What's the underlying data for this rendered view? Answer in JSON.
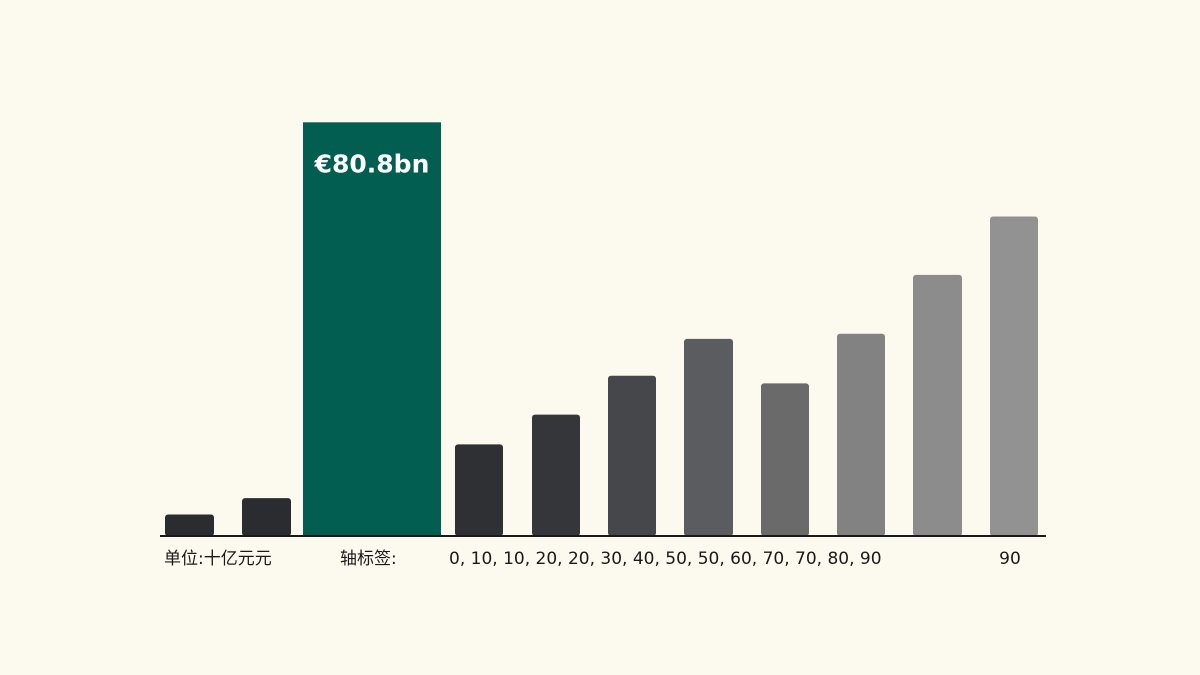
{
  "chart_data": {
    "type": "bar",
    "title": "",
    "xlabel": "",
    "ylabel": "",
    "ylim": [
      0,
      90
    ],
    "grid": false,
    "legend": "none",
    "bars": [
      {
        "value": 4.2,
        "color": "#2a2c30"
      },
      {
        "value": 7.4,
        "color": "#2a2c30"
      },
      {
        "value": 80.8,
        "color": "#025e50",
        "label": "€80.8bn",
        "highlight": true
      },
      {
        "value": 17.9,
        "color": "#2e3034"
      },
      {
        "value": 23.7,
        "color": "#34363a"
      },
      {
        "value": 31.3,
        "color": "#46474b"
      },
      {
        "value": 38.5,
        "color": "#5b5c5f"
      },
      {
        "value": 29.8,
        "color": "#6a6a6b"
      },
      {
        "value": 39.5,
        "color": "#828282"
      },
      {
        "value": 51.0,
        "color": "#8c8c8c"
      },
      {
        "value": 62.4,
        "color": "#929292"
      }
    ],
    "unit_text": "单位:十亿元元",
    "axis_label_text": "轴标签:",
    "tick_sequence_text": "0, 10, 10, 20, 20, 30, 40, 50, 50, 60, 70, 70, 80, 90",
    "last_tick_text": "90"
  }
}
